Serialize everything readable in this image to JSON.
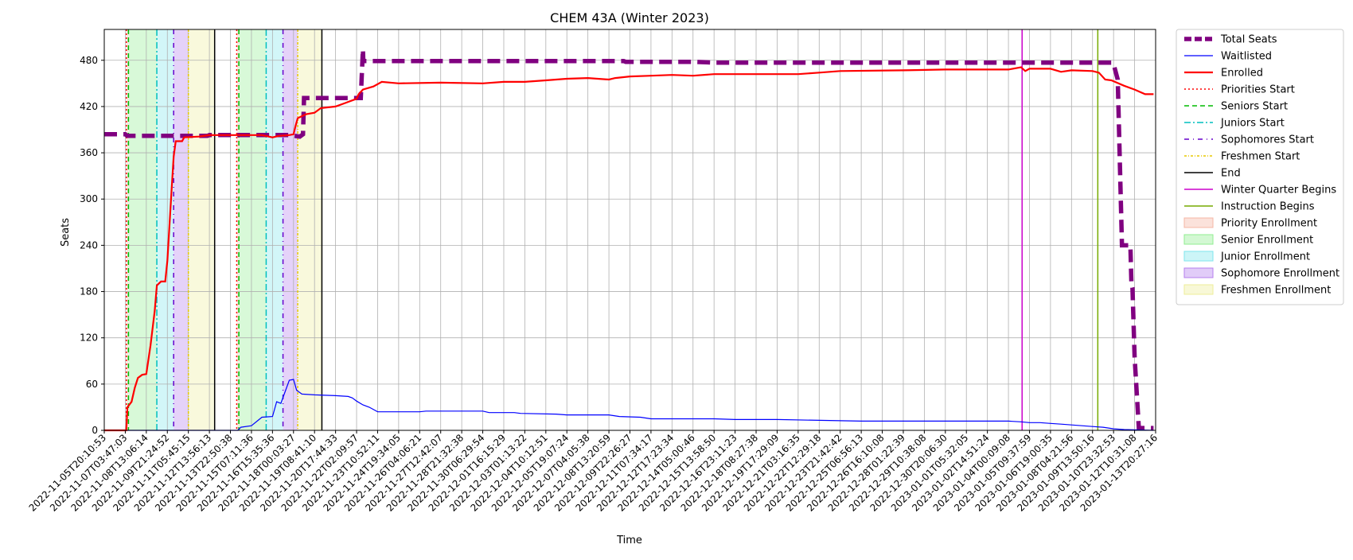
{
  "chart_data": {
    "type": "line",
    "title": "CHEM 43A (Winter 2023)",
    "xlabel": "Time",
    "ylabel": "Seats",
    "ylim": [
      0,
      520
    ],
    "yticks": [
      0,
      60,
      120,
      180,
      240,
      300,
      360,
      420,
      480
    ],
    "grid": true,
    "legend_position": "outside-top-right",
    "x_tick_labels": [
      "2022-11-05T20:10:53",
      "2022-11-07T03:47:03",
      "2022-11-08T13:06:14",
      "2022-11-09T21:24:52",
      "2022-11-11T05:45:15",
      "2022-11-12T13:56:13",
      "2022-11-13T22:50:38",
      "2022-11-15T07:11:36",
      "2022-11-16T15:35:36",
      "2022-11-18T00:03:27",
      "2022-11-19T08:41:10",
      "2022-11-20T17:44:33",
      "2022-11-22T02:09:57",
      "2022-11-23T10:52:11",
      "2022-11-24T19:34:05",
      "2022-11-26T04:06:21",
      "2022-11-27T12:42:07",
      "2022-11-28T21:32:38",
      "2022-11-30T06:29:54",
      "2022-12-01T16:15:29",
      "2022-12-03T01:13:22",
      "2022-12-04T10:12:51",
      "2022-12-05T19:07:24",
      "2022-12-07T04:05:38",
      "2022-12-08T13:20:59",
      "2022-12-09T22:26:27",
      "2022-12-11T07:34:17",
      "2022-12-12T17:23:34",
      "2022-12-14T05:00:46",
      "2022-12-15T13:58:50",
      "2022-12-16T23:11:23",
      "2022-12-18T08:27:38",
      "2022-12-19T17:29:09",
      "2022-12-21T03:16:35",
      "2022-12-22T12:29:18",
      "2022-12-23T21:42:42",
      "2022-12-25T06:56:13",
      "2022-12-26T16:10:08",
      "2022-12-28T01:22:39",
      "2022-12-29T10:38:08",
      "2022-12-30T20:06:30",
      "2023-01-01T05:32:05",
      "2023-01-02T14:51:24",
      "2023-01-04T00:09:08",
      "2023-01-05T09:37:59",
      "2023-01-06T19:00:35",
      "2023-01-08T04:21:56",
      "2023-01-09T13:50:16",
      "2023-01-10T23:32:53",
      "2023-01-12T10:31:08",
      "2023-01-13T20:27:16"
    ],
    "series": [
      {
        "name": "Total Seats",
        "color": "#800080",
        "style": "dashed-thick",
        "points": [
          [
            0,
            384
          ],
          [
            1,
            384
          ],
          [
            1.1,
            382
          ],
          [
            4.9,
            382
          ],
          [
            5.0,
            383
          ],
          [
            8.8,
            383
          ],
          [
            9.3,
            381
          ],
          [
            9.45,
            384
          ],
          [
            9.5,
            431
          ],
          [
            12.2,
            431
          ],
          [
            12.3,
            494
          ],
          [
            12.32,
            479
          ],
          [
            24.7,
            479
          ],
          [
            24.8,
            478
          ],
          [
            28.0,
            478
          ],
          [
            29.0,
            477
          ],
          [
            47.9,
            477
          ],
          [
            48.0,
            475
          ],
          [
            48.2,
            455
          ],
          [
            48.4,
            240
          ],
          [
            48.8,
            240
          ],
          [
            48.85,
            190
          ],
          [
            48.9,
            185
          ],
          [
            49.0,
            95
          ],
          [
            49.2,
            3
          ],
          [
            49.9,
            3
          ]
        ]
      },
      {
        "name": "Waitlisted",
        "color": "#0000ff",
        "style": "solid-thin",
        "points": [
          [
            0,
            0
          ],
          [
            5.6,
            0
          ],
          [
            6.35,
            0
          ],
          [
            6.5,
            4
          ],
          [
            7.0,
            6
          ],
          [
            7.5,
            17
          ],
          [
            8.0,
            18
          ],
          [
            8.2,
            37
          ],
          [
            8.4,
            35
          ],
          [
            8.6,
            50
          ],
          [
            8.8,
            65
          ],
          [
            9.0,
            66
          ],
          [
            9.15,
            52
          ],
          [
            9.4,
            47
          ],
          [
            10.0,
            46
          ],
          [
            11.0,
            45
          ],
          [
            11.6,
            44
          ],
          [
            11.8,
            42
          ],
          [
            12.0,
            38
          ],
          [
            12.3,
            33
          ],
          [
            12.6,
            30
          ],
          [
            13.0,
            24
          ],
          [
            15.0,
            24
          ],
          [
            15.3,
            25
          ],
          [
            18.0,
            25
          ],
          [
            18.3,
            23
          ],
          [
            19.5,
            23
          ],
          [
            19.8,
            22
          ],
          [
            21.5,
            21
          ],
          [
            22.0,
            20
          ],
          [
            24.0,
            20
          ],
          [
            24.5,
            18
          ],
          [
            25.5,
            17
          ],
          [
            26.0,
            15
          ],
          [
            29.0,
            15
          ],
          [
            30.0,
            14
          ],
          [
            32.0,
            14
          ],
          [
            34.0,
            13
          ],
          [
            36.0,
            12
          ],
          [
            40.0,
            12
          ],
          [
            43.0,
            12
          ],
          [
            43.6,
            11
          ],
          [
            44.0,
            10
          ],
          [
            44.5,
            10
          ],
          [
            45.0,
            9
          ],
          [
            45.5,
            8
          ],
          [
            46.0,
            7
          ],
          [
            46.5,
            6
          ],
          [
            47.0,
            5
          ],
          [
            47.5,
            4
          ],
          [
            48.0,
            2
          ],
          [
            48.5,
            1
          ],
          [
            49.9,
            0
          ]
        ]
      },
      {
        "name": "Enrolled",
        "color": "#ff0000",
        "style": "solid-thick",
        "points": [
          [
            0,
            0
          ],
          [
            1.05,
            0
          ],
          [
            1.1,
            30
          ],
          [
            1.3,
            37
          ],
          [
            1.45,
            55
          ],
          [
            1.6,
            68
          ],
          [
            1.8,
            72
          ],
          [
            2.0,
            73
          ],
          [
            2.2,
            110
          ],
          [
            2.4,
            155
          ],
          [
            2.5,
            188
          ],
          [
            2.7,
            193
          ],
          [
            2.9,
            193
          ],
          [
            3.0,
            220
          ],
          [
            3.2,
            310
          ],
          [
            3.3,
            355
          ],
          [
            3.4,
            375
          ],
          [
            3.7,
            375
          ],
          [
            3.8,
            380
          ],
          [
            4.5,
            381
          ],
          [
            5.0,
            383
          ],
          [
            7.5,
            383
          ],
          [
            8.0,
            380
          ],
          [
            8.3,
            382
          ],
          [
            8.8,
            383
          ],
          [
            9.0,
            384
          ],
          [
            9.1,
            395
          ],
          [
            9.2,
            405
          ],
          [
            9.6,
            410
          ],
          [
            10.0,
            412
          ],
          [
            10.3,
            418
          ],
          [
            11.0,
            420
          ],
          [
            11.5,
            425
          ],
          [
            12.0,
            430
          ],
          [
            12.1,
            436
          ],
          [
            12.3,
            442
          ],
          [
            12.8,
            446
          ],
          [
            13.2,
            452
          ],
          [
            14.0,
            450
          ],
          [
            16.0,
            451
          ],
          [
            18.0,
            450
          ],
          [
            19.0,
            452
          ],
          [
            20.0,
            452
          ],
          [
            21.0,
            454
          ],
          [
            22.0,
            456
          ],
          [
            23.0,
            457
          ],
          [
            24.0,
            455
          ],
          [
            24.3,
            457
          ],
          [
            25.0,
            459
          ],
          [
            26.0,
            460
          ],
          [
            27.0,
            461
          ],
          [
            28.0,
            460
          ],
          [
            29.0,
            462
          ],
          [
            30.0,
            462
          ],
          [
            33.0,
            462
          ],
          [
            34.0,
            464
          ],
          [
            35.0,
            466
          ],
          [
            38.0,
            467
          ],
          [
            40.0,
            468
          ],
          [
            43.0,
            468
          ],
          [
            43.6,
            471
          ],
          [
            43.8,
            466
          ],
          [
            44.0,
            469
          ],
          [
            45.0,
            469
          ],
          [
            45.5,
            465
          ],
          [
            46.0,
            467
          ],
          [
            47.0,
            466
          ],
          [
            47.3,
            464
          ],
          [
            47.6,
            455
          ],
          [
            47.9,
            454
          ],
          [
            48.5,
            447
          ],
          [
            49.0,
            442
          ],
          [
            49.5,
            436
          ],
          [
            49.9,
            436
          ]
        ]
      }
    ],
    "enrollment_periods": [
      {
        "name": "Priority Enrollment",
        "color": "#f4b7a5",
        "spans": [
          [
            1.05,
            1.15
          ],
          [
            6.3,
            6.4
          ]
        ]
      },
      {
        "name": "Senior Enrollment",
        "color": "#90ee90",
        "spans": [
          [
            1.15,
            2.5
          ],
          [
            6.4,
            7.7
          ]
        ]
      },
      {
        "name": "Junior Enrollment",
        "color": "#7fe5ec",
        "spans": [
          [
            2.5,
            3.3
          ],
          [
            7.7,
            8.5
          ]
        ]
      },
      {
        "name": "Sophomore Enrollment",
        "color": "#b57fee",
        "spans": [
          [
            3.3,
            4.0
          ],
          [
            8.5,
            9.2
          ]
        ]
      },
      {
        "name": "Freshmen Enrollment",
        "color": "#eeee9a",
        "spans": [
          [
            4.0,
            5.25
          ],
          [
            9.2,
            10.35
          ]
        ]
      }
    ],
    "vertical_markers": [
      {
        "name": "Priorities Start",
        "color": "#ff0000",
        "dash": "2,3",
        "x": [
          1.05,
          6.3
        ]
      },
      {
        "name": "Seniors Start",
        "color": "#00bb00",
        "dash": "6,4",
        "x": [
          1.15,
          6.4
        ]
      },
      {
        "name": "Juniors Start",
        "color": "#00bfbf",
        "dash": "8,3,2,3",
        "x": [
          2.5,
          7.7
        ]
      },
      {
        "name": "Sophomores Start",
        "color": "#6600cc",
        "dash": "6,5,1,5",
        "x": [
          3.3,
          8.5
        ]
      },
      {
        "name": "Freshmen Start",
        "color": "#e8c800",
        "dash": "3,2,1,2",
        "x": [
          4.0,
          9.2
        ]
      },
      {
        "name": "End",
        "color": "#000000",
        "dash": "",
        "x": [
          5.25,
          10.35
        ]
      },
      {
        "name": "Winter Quarter Begins",
        "color": "#cc00cc",
        "dash": "",
        "x": [
          43.65
        ]
      },
      {
        "name": "Instruction Begins",
        "color": "#77aa00",
        "dash": "",
        "x": [
          47.25
        ]
      }
    ]
  }
}
